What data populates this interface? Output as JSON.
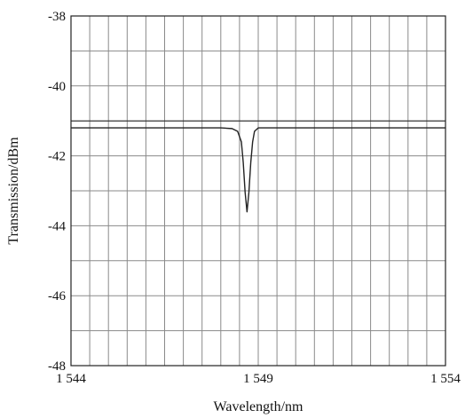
{
  "chart_data": {
    "type": "line",
    "title": "",
    "xlabel": "Wavelength/nm",
    "ylabel": "Transmission/dBm",
    "xlim": [
      1544,
      1554
    ],
    "ylim": [
      -48,
      -38
    ],
    "x_ticks": [
      {
        "value": 1544,
        "label": "1 544"
      },
      {
        "value": 1549,
        "label": "1 549"
      },
      {
        "value": 1554,
        "label": "1 554"
      }
    ],
    "y_ticks": [
      {
        "value": -38,
        "label": "-38"
      },
      {
        "value": -40,
        "label": "-40"
      },
      {
        "value": -42,
        "label": "-42"
      },
      {
        "value": -44,
        "label": "-44"
      },
      {
        "value": -46,
        "label": "-46"
      },
      {
        "value": -48,
        "label": "-48"
      }
    ],
    "grid": true,
    "x_grid_step": 0.5,
    "y_grid_step": 1,
    "reference_line": -41,
    "series": [
      {
        "color": "#222222",
        "x": [
          1544,
          1545,
          1546,
          1547,
          1548,
          1548.3,
          1548.45,
          1548.55,
          1548.6,
          1548.65,
          1548.7,
          1548.75,
          1548.8,
          1548.85,
          1548.9,
          1549,
          1549.5,
          1550,
          1551,
          1552,
          1553,
          1554
        ],
        "y": [
          -41.2,
          -41.2,
          -41.2,
          -41.2,
          -41.2,
          -41.22,
          -41.3,
          -41.6,
          -42.2,
          -43.05,
          -43.6,
          -43.05,
          -42.2,
          -41.6,
          -41.3,
          -41.2,
          -41.2,
          -41.2,
          -41.2,
          -41.2,
          -41.2,
          -41.2
        ]
      }
    ]
  }
}
